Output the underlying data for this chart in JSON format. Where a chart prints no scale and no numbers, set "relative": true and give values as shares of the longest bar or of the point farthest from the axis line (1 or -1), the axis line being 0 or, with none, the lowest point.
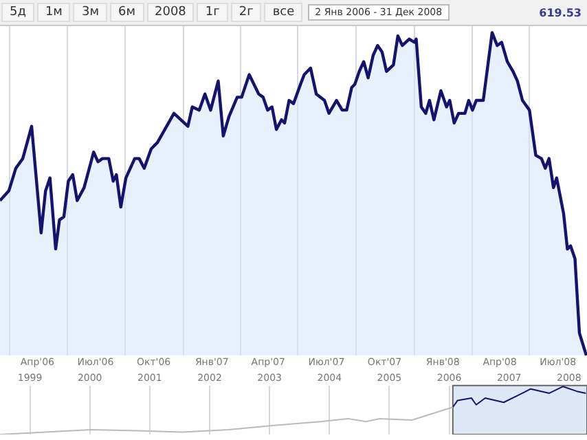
{
  "chart_data": [
    {
      "type": "area",
      "relative": true,
      "grid": "x",
      "legend": false,
      "marker": "none",
      "line_style": "solid",
      "annotations": [
        "5д",
        "1м",
        "3м",
        "6м",
        "2008",
        "1г",
        "2г",
        "все",
        "2 Янв 2006 - 31 Дек 2008",
        "619.53"
      ],
      "xlim": [
        "2006-03-17",
        "2008-09-30"
      ],
      "xticks": [
        {
          "value": "2006-04-01",
          "label": null
        },
        {
          "value": "2006-05-15",
          "label": "Апр'06"
        },
        {
          "value": "2006-07-01",
          "label": null
        },
        {
          "value": "2006-08-15",
          "label": "Июл'06"
        },
        {
          "value": "2006-10-01",
          "label": null
        },
        {
          "value": "2006-11-15",
          "label": "Окт'06"
        },
        {
          "value": "2007-01-01",
          "label": null
        },
        {
          "value": "2007-02-15",
          "label": "Янв'07"
        },
        {
          "value": "2007-04-01",
          "label": null
        },
        {
          "value": "2007-05-15",
          "label": "Апр'07"
        },
        {
          "value": "2007-07-01",
          "label": null
        },
        {
          "value": "2007-08-15",
          "label": "Июл'07"
        },
        {
          "value": "2007-10-01",
          "label": null
        },
        {
          "value": "2007-11-15",
          "label": "Окт'07"
        },
        {
          "value": "2008-01-01",
          "label": null
        },
        {
          "value": "2008-02-15",
          "label": "Янв'08"
        },
        {
          "value": "2008-04-01",
          "label": null
        },
        {
          "value": "2008-05-15",
          "label": "Апр'08"
        },
        {
          "value": "2008-07-01",
          "label": null
        },
        {
          "value": "2008-08-15",
          "label": "Июл'08"
        }
      ],
      "series": [
        {
          "color": "#14146e",
          "x": [
            "2006-03-17",
            "2006-03-31",
            "2006-04-11",
            "2006-04-22",
            "2006-05-06",
            "2006-05-21",
            "2006-05-28",
            "2006-06-04",
            "2006-06-13",
            "2006-06-19",
            "2006-06-26",
            "2006-07-03",
            "2006-07-10",
            "2006-07-17",
            "2006-07-28",
            "2006-08-12",
            "2006-08-19",
            "2006-08-26",
            "2006-09-05",
            "2006-09-12",
            "2006-09-17",
            "2006-09-24",
            "2006-10-02",
            "2006-10-16",
            "2006-10-23",
            "2006-10-31",
            "2006-11-11",
            "2006-11-21",
            "2006-12-17",
            "2007-01-08",
            "2007-01-15",
            "2007-01-26",
            "2007-02-04",
            "2007-02-13",
            "2007-02-25",
            "2007-03-05",
            "2007-03-14",
            "2007-03-27",
            "2007-04-03",
            "2007-04-15",
            "2007-04-30",
            "2007-05-07",
            "2007-05-14",
            "2007-05-21",
            "2007-05-28",
            "2007-06-05",
            "2007-06-10",
            "2007-06-17",
            "2007-06-24",
            "2007-07-07",
            "2007-07-11",
            "2007-07-21",
            "2007-07-30",
            "2007-08-12",
            "2007-08-19",
            "2007-08-31",
            "2007-09-09",
            "2007-09-16",
            "2007-09-24",
            "2007-09-29",
            "2007-10-06",
            "2007-10-13",
            "2007-10-20",
            "2007-10-28",
            "2007-11-04",
            "2007-11-11",
            "2007-11-18",
            "2007-11-29",
            "2007-12-06",
            "2007-12-13",
            "2007-12-24",
            "2008-01-01",
            "2008-01-04",
            "2008-01-12",
            "2008-01-19",
            "2008-01-25",
            "2008-02-01",
            "2008-02-12",
            "2008-02-21",
            "2008-02-26",
            "2008-03-04",
            "2008-03-11",
            "2008-03-21",
            "2008-03-27",
            "2008-04-02",
            "2008-04-08",
            "2008-04-19",
            "2008-05-03",
            "2008-05-11",
            "2008-05-18",
            "2008-05-27",
            "2008-06-05",
            "2008-06-12",
            "2008-06-20",
            "2008-07-01",
            "2008-07-11",
            "2008-07-20",
            "2008-07-26",
            "2008-08-01",
            "2008-08-08",
            "2008-08-13",
            "2008-08-24",
            "2008-08-30",
            "2008-09-04",
            "2008-09-11",
            "2008-09-18",
            "2008-09-29"
          ],
          "values": [
            0.48,
            0.51,
            0.58,
            0.61,
            0.71,
            0.38,
            0.51,
            0.55,
            0.33,
            0.42,
            0.43,
            0.54,
            0.56,
            0.48,
            0.52,
            0.63,
            0.6,
            0.61,
            0.61,
            0.54,
            0.56,
            0.46,
            0.55,
            0.61,
            0.61,
            0.58,
            0.64,
            0.66,
            0.75,
            0.71,
            0.77,
            0.76,
            0.81,
            0.76,
            0.85,
            0.68,
            0.74,
            0.8,
            0.8,
            0.87,
            0.81,
            0.8,
            0.76,
            0.77,
            0.7,
            0.73,
            0.72,
            0.79,
            0.78,
            0.85,
            0.87,
            0.89,
            0.81,
            0.79,
            0.75,
            0.79,
            0.76,
            0.76,
            0.83,
            0.84,
            0.88,
            0.91,
            0.86,
            0.93,
            0.96,
            0.94,
            0.88,
            0.9,
            0.99,
            0.96,
            0.98,
            0.97,
            0.98,
            0.77,
            0.75,
            0.79,
            0.73,
            0.82,
            0.77,
            0.79,
            0.72,
            0.75,
            0.75,
            0.79,
            0.76,
            0.79,
            0.79,
            1.0,
            0.96,
            0.97,
            0.91,
            0.88,
            0.85,
            0.79,
            0.76,
            0.62,
            0.61,
            0.58,
            0.61,
            0.52,
            0.55,
            0.44,
            0.33,
            0.34,
            0.3,
            0.07,
            0.0
          ]
        }
      ]
    },
    {
      "type": "line",
      "relative": true,
      "grid": "x",
      "legend": false,
      "marker": "none",
      "line_style": "solid",
      "xlim": [
        1998.5,
        2008.3
      ],
      "xticks": [
        1999,
        2000,
        2001,
        2002,
        2003,
        2004,
        2005,
        2006,
        2007,
        2008
      ],
      "bands": [
        {
          "axis": "x",
          "from": 2006.06,
          "to": 2008.3,
          "color": "#dde8f6"
        }
      ],
      "series": [
        {
          "color": "#bbbbbb",
          "x": [
            1998.5,
            2000.02,
            2000.79,
            2001.55,
            2002.32,
            2003.08,
            2003.85,
            2004.31,
            2004.61,
            2004.84,
            2005.38,
            2005.83,
            2006.06
          ],
          "values": [
            0,
            0.1,
            0.08,
            0.05,
            0.1,
            0.19,
            0.27,
            0.33,
            0.27,
            0.33,
            0.3,
            0.48,
            0.57
          ]
        },
        {
          "color": "#14146e",
          "x": [
            2006.06,
            2006.14,
            2006.37,
            2006.45,
            2006.6,
            2006.91,
            2007.14,
            2007.36,
            2007.67,
            2007.9,
            2008.13,
            2008.28
          ],
          "values": [
            0.57,
            0.71,
            0.76,
            0.62,
            0.76,
            0.67,
            0.81,
            0.95,
            0.86,
            1.0,
            0.9,
            0.86
          ]
        }
      ]
    }
  ]
}
